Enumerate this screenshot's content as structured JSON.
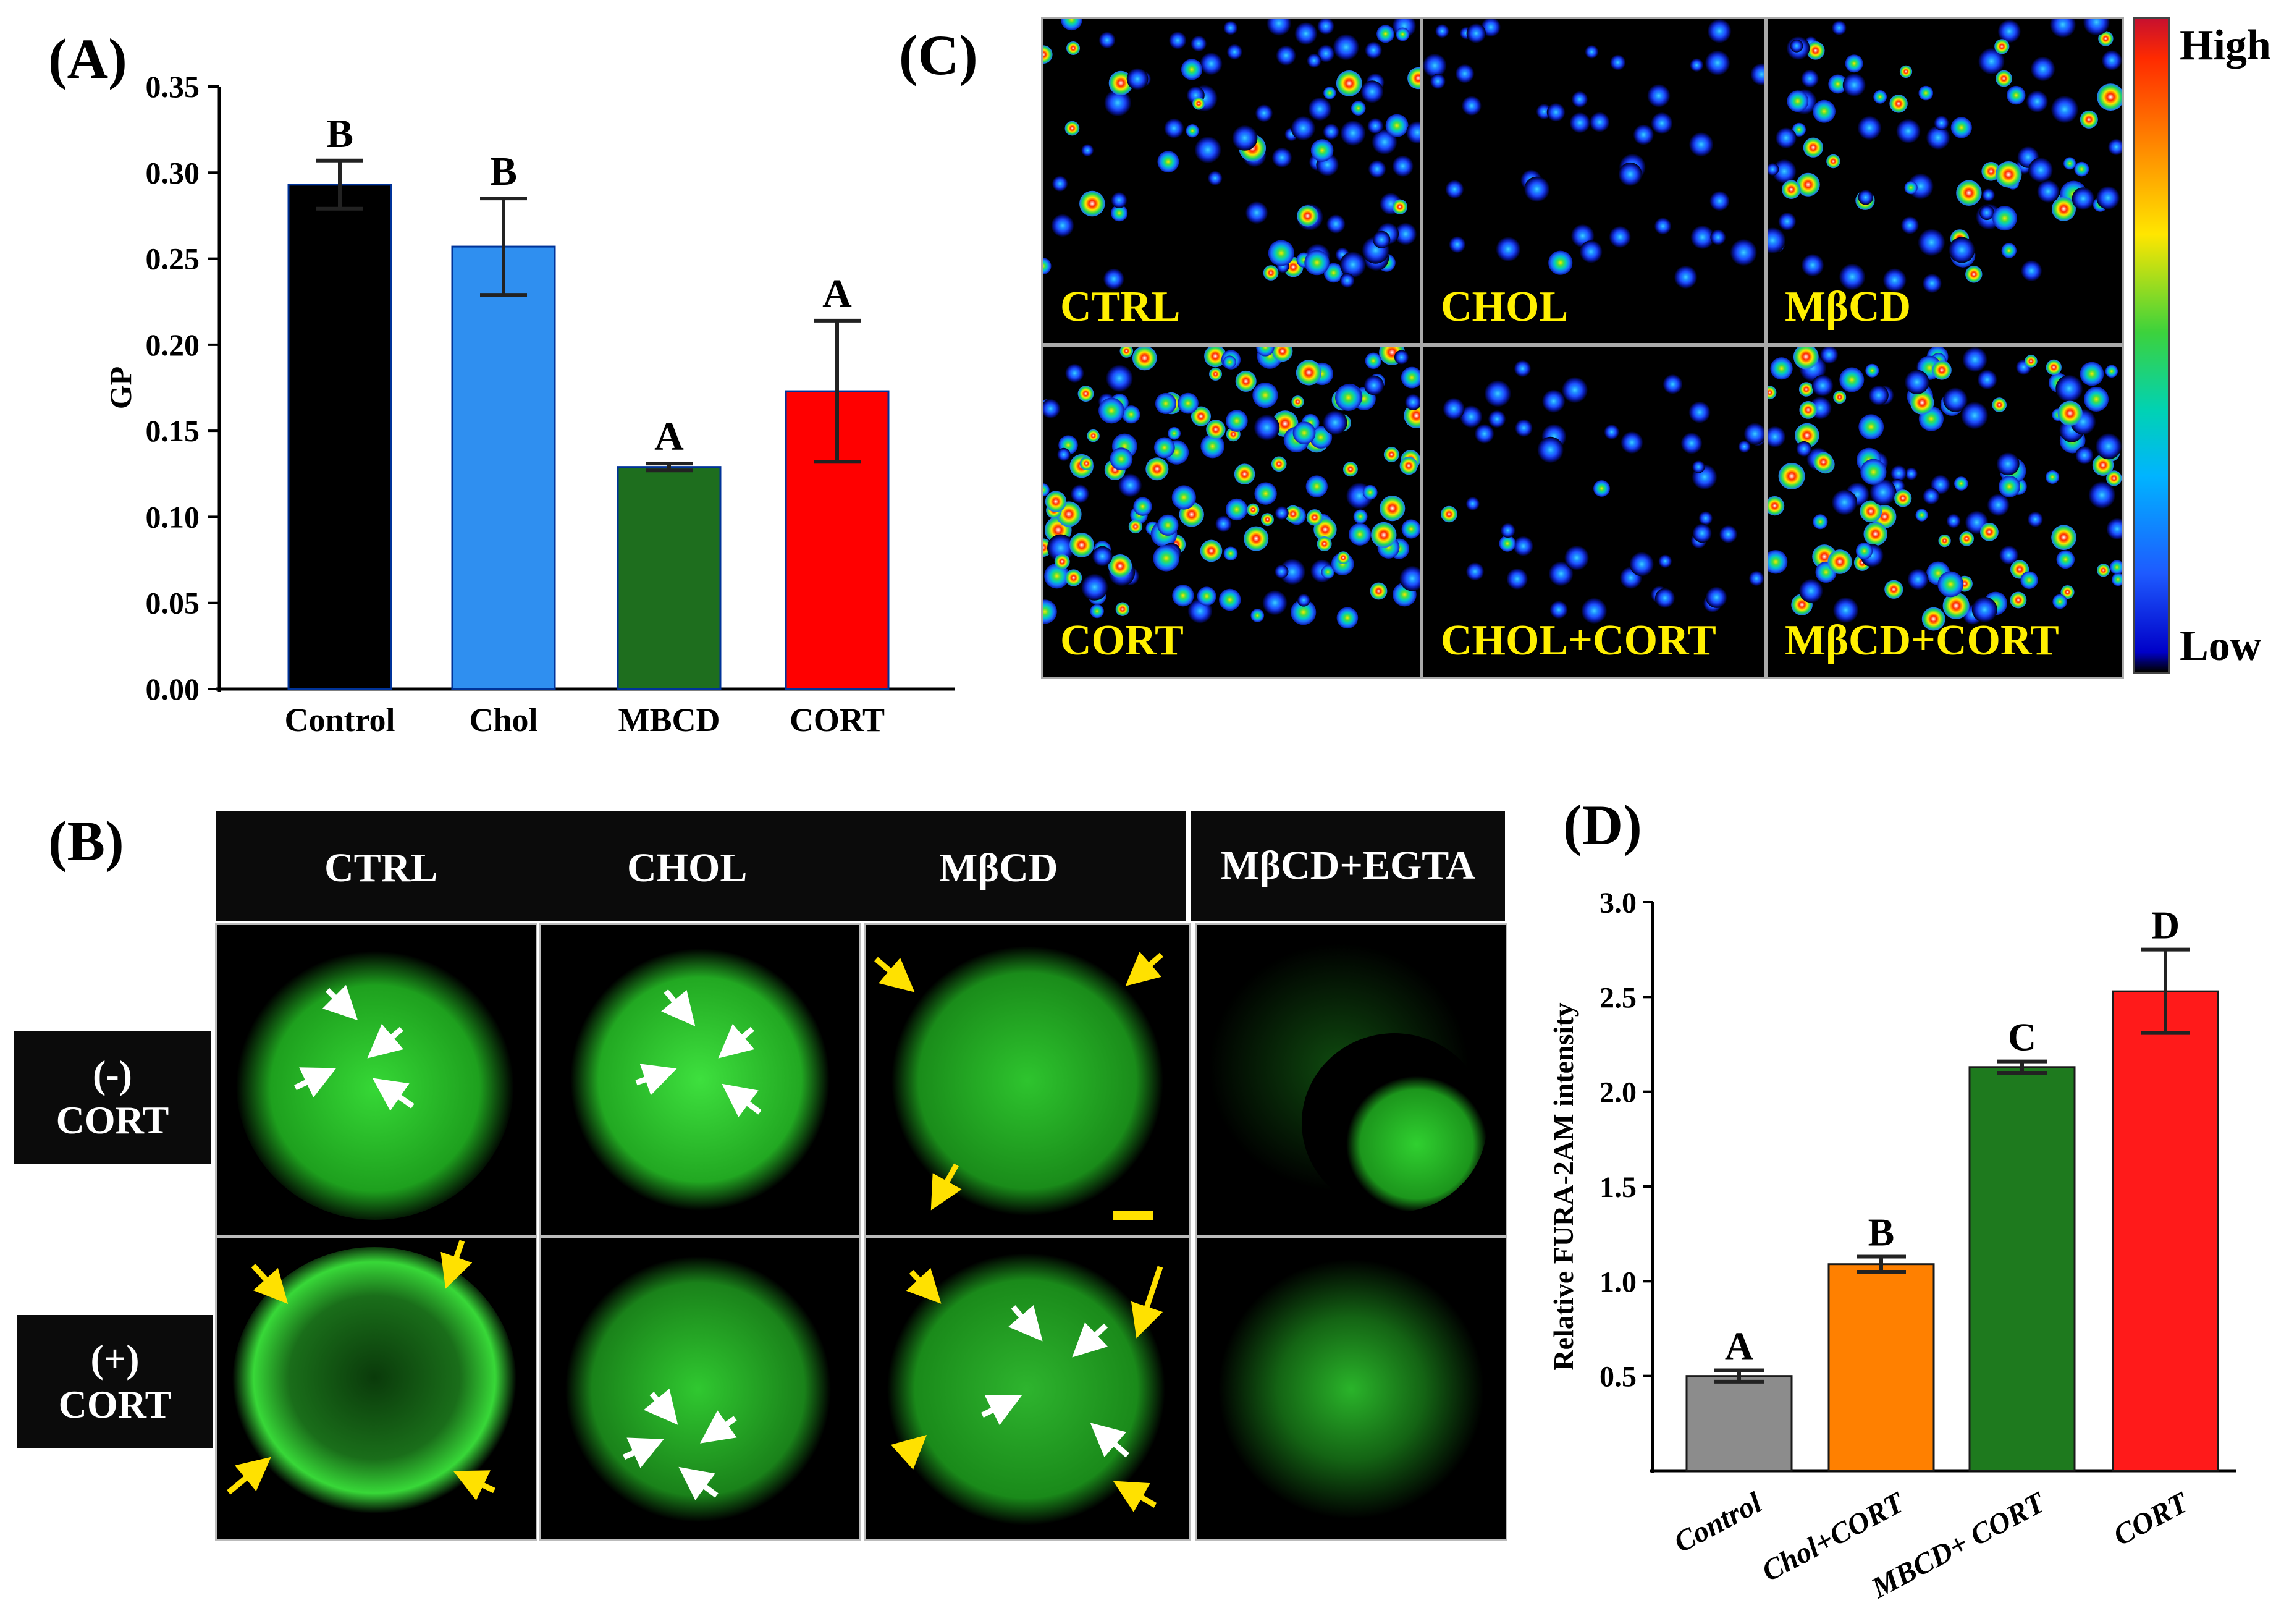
{
  "panels": {
    "A": {
      "letter": "(A)"
    },
    "B": {
      "letter": "(B)"
    },
    "C": {
      "letter": "(C)"
    },
    "D": {
      "letter": "(D)"
    }
  },
  "chart_data": [
    {
      "id": "A",
      "type": "bar",
      "title": "",
      "xlabel": "",
      "ylabel": "GP",
      "ylim": [
        0,
        0.35
      ],
      "yticks": [
        "0.00",
        "0.05",
        "0.10",
        "0.15",
        "0.20",
        "0.25",
        "0.30",
        "0.35"
      ],
      "categories": [
        "Control",
        "Chol",
        "MBCD",
        "CORT"
      ],
      "values": [
        0.293,
        0.257,
        0.129,
        0.173
      ],
      "errors": [
        0.014,
        0.028,
        0.002,
        0.041
      ],
      "sig_letters": [
        "B",
        "B",
        "A",
        "A"
      ],
      "colors": [
        "#000000",
        "#2f8ff0",
        "#1e6e1e",
        "#ff0000"
      ]
    },
    {
      "id": "D",
      "type": "bar",
      "title": "",
      "xlabel": "",
      "ylabel": "Relative FURA-2AM intensity",
      "ylim": [
        0,
        3.0
      ],
      "yticks": [
        "0.5",
        "1.0",
        "1.5",
        "2.0",
        "2.5",
        "3.0"
      ],
      "categories": [
        "Control",
        "Chol+CORT",
        "MBCD+ CORT",
        "CORT"
      ],
      "values": [
        0.5,
        1.09,
        2.13,
        2.53
      ],
      "errors": [
        0.03,
        0.04,
        0.03,
        0.22
      ],
      "sig_letters": [
        "A",
        "B",
        "C",
        "D"
      ],
      "colors": [
        "#8c8c8c",
        "#ff8000",
        "#1e7a1e",
        "#ff1a1a"
      ]
    }
  ],
  "panelB": {
    "headers": [
      "CTRL",
      "CHOL",
      "MβCD",
      "MβCD+EGTA"
    ],
    "row1": {
      "line1": "(-)",
      "line2": "CORT"
    },
    "row2": {
      "line1": "(+)",
      "line2": "CORT"
    }
  },
  "panelC": {
    "labels": [
      "CTRL",
      "CHOL",
      "MβCD",
      "CORT",
      "CHOL+CORT",
      "MβCD+CORT"
    ],
    "scale_high": "High",
    "scale_low": "Low",
    "colors": {
      "high": "#c8102e",
      "low": "#0000c8"
    }
  }
}
